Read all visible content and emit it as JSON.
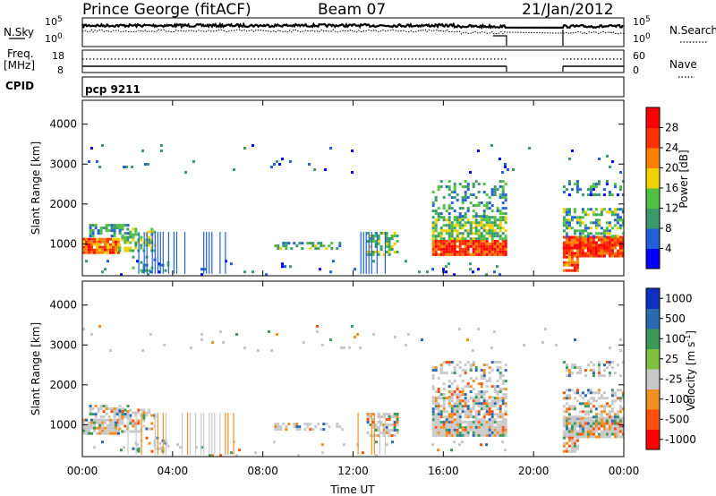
{
  "header": {
    "station": "Prince George (fitACF)",
    "beam": "Beam 07",
    "date": "21/Jan/2012"
  },
  "top_panels": {
    "nsky_label": "N.Sky",
    "nsearch_label": "N.Search",
    "nsky_ticks": [
      "10^5",
      "10^0"
    ],
    "nsearch_ticks": [
      "10^5",
      "10^0"
    ],
    "freq_label_1": "Freq.",
    "freq_label_2": "[MHz]",
    "freq_ticks": [
      "18",
      "8"
    ],
    "nave_label": "Nave",
    "nave_ticks": [
      "60",
      "0"
    ],
    "cpid_label": "CPID",
    "cpid_value": "pcp 9211"
  },
  "chart_data": [
    {
      "type": "heatmap",
      "name": "power",
      "ylabel": "Slant Range [km]",
      "xlabel": "Time UT",
      "x_ticks": [
        "00:00",
        "04:00",
        "08:00",
        "12:00",
        "16:00",
        "20:00",
        "00:00"
      ],
      "x_hours": [
        0,
        4,
        8,
        12,
        16,
        20,
        24
      ],
      "ylim": [
        200,
        4600
      ],
      "y_ticks": [
        1000,
        2000,
        3000,
        4000
      ],
      "colorbar": {
        "label": "Power [dB]",
        "ticks": [
          4,
          8,
          12,
          16,
          20,
          24,
          28
        ],
        "range": [
          0,
          32
        ],
        "colors": [
          "#0000ff",
          "#2060d8",
          "#3a9a6a",
          "#50c040",
          "#f0d000",
          "#ff8000",
          "#ff3000",
          "#ff0000"
        ]
      },
      "data_gaps_hours": [
        [
          18.8,
          21.3
        ]
      ]
    },
    {
      "type": "heatmap",
      "name": "velocity",
      "ylabel": "Slant Range [km]",
      "xlabel": "Time UT",
      "x_ticks": [
        "00:00",
        "04:00",
        "08:00",
        "12:00",
        "16:00",
        "20:00",
        "00:00"
      ],
      "x_hours": [
        0,
        4,
        8,
        12,
        16,
        20,
        24
      ],
      "ylim": [
        200,
        4600
      ],
      "y_ticks": [
        1000,
        2000,
        3000,
        4000
      ],
      "colorbar": {
        "label": "Velocity [m s^-1]",
        "ticks": [
          "1000",
          "500",
          "100",
          "25",
          "-25",
          "-100",
          "-500",
          "-1000"
        ],
        "colors": [
          "#1030c0",
          "#2a6ab0",
          "#3a9a5a",
          "#80c040",
          "#c8c8c8",
          "#f09020",
          "#ff5010",
          "#ff0000"
        ]
      },
      "data_gaps_hours": [
        [
          18.8,
          21.3
        ]
      ]
    }
  ],
  "xaxis": {
    "title": "Time UT"
  },
  "colors": {
    "axis": "#000000",
    "gap": "#ffffff"
  }
}
